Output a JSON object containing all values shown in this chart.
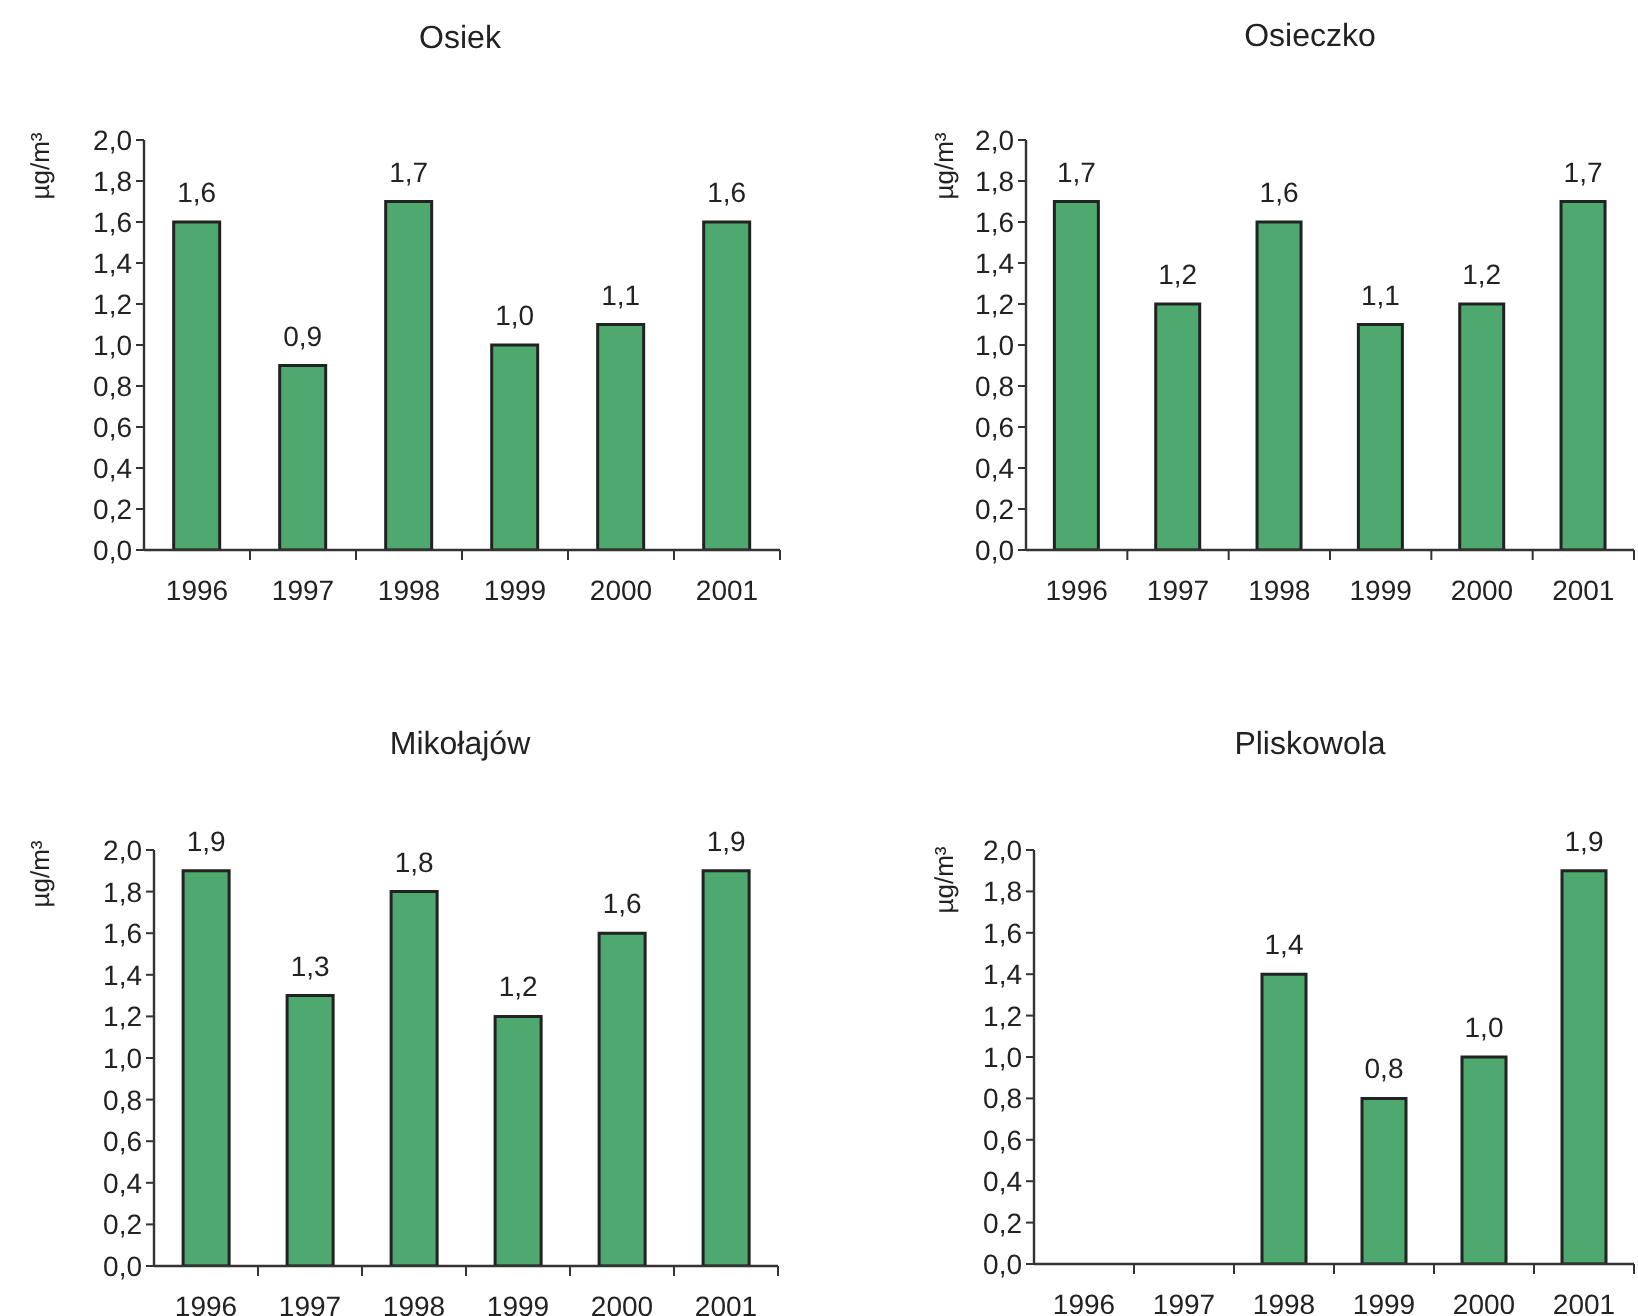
{
  "chart_data": [
    {
      "type": "bar",
      "title": "Osiek",
      "ylabel": "µg/m³",
      "categories": [
        "1996",
        "1997",
        "1998",
        "1999",
        "2000",
        "2001"
      ],
      "values": [
        1.6,
        0.9,
        1.7,
        1.0,
        1.1,
        1.6
      ],
      "value_labels": [
        "1,6",
        "0,9",
        "1,7",
        "1,0",
        "1,1",
        "1,6"
      ],
      "color": "#4da96e",
      "ylim": [
        0,
        2
      ],
      "yticks": [
        {
          "value": 0,
          "label": "0,0"
        },
        {
          "value": 0.2,
          "label": "0,2"
        },
        {
          "value": 0.4,
          "label": "0,4"
        },
        {
          "value": 0.6,
          "label": "0,6"
        },
        {
          "value": 0.8,
          "label": "0,8"
        },
        {
          "value": 1,
          "label": "1,0"
        },
        {
          "value": 1.2,
          "label": "1,2"
        },
        {
          "value": 1.4,
          "label": "1,4"
        },
        {
          "value": 1.6,
          "label": "1,6"
        },
        {
          "value": 1.8,
          "label": "1,8"
        },
        {
          "value": 2,
          "label": "2,0"
        }
      ]
    },
    {
      "type": "bar",
      "title": "Osieczko",
      "ylabel": "µg/m³",
      "categories": [
        "1996",
        "1997",
        "1998",
        "1999",
        "2000",
        "2001"
      ],
      "values": [
        1.7,
        1.2,
        1.6,
        1.1,
        1.2,
        1.7
      ],
      "value_labels": [
        "1,7",
        "1,2",
        "1,6",
        "1,1",
        "1,2",
        "1,7"
      ],
      "color": "#4da96e",
      "ylim": [
        0,
        2
      ],
      "yticks": [
        {
          "value": 0,
          "label": "0,0"
        },
        {
          "value": 0.2,
          "label": "0,2"
        },
        {
          "value": 0.4,
          "label": "0,4"
        },
        {
          "value": 0.6,
          "label": "0,6"
        },
        {
          "value": 0.8,
          "label": "0,8"
        },
        {
          "value": 1,
          "label": "1,0"
        },
        {
          "value": 1.2,
          "label": "1,2"
        },
        {
          "value": 1.4,
          "label": "1,4"
        },
        {
          "value": 1.6,
          "label": "1,6"
        },
        {
          "value": 1.8,
          "label": "1,8"
        },
        {
          "value": 2,
          "label": "2,0"
        }
      ]
    },
    {
      "type": "bar",
      "title": "Mikołajów",
      "ylabel": "µg/m³",
      "categories": [
        "1996",
        "1997",
        "1998",
        "1999",
        "2000",
        "2001"
      ],
      "values": [
        1.9,
        1.3,
        1.8,
        1.2,
        1.6,
        1.9
      ],
      "value_labels": [
        "1,9",
        "1,3",
        "1,8",
        "1,2",
        "1,6",
        "1,9"
      ],
      "color": "#4da96e",
      "ylim": [
        0,
        2
      ],
      "yticks": [
        {
          "value": 0,
          "label": "0,0"
        },
        {
          "value": 0.2,
          "label": "0,2"
        },
        {
          "value": 0.4,
          "label": "0,4"
        },
        {
          "value": 0.6,
          "label": "0,6"
        },
        {
          "value": 0.8,
          "label": "0,8"
        },
        {
          "value": 1,
          "label": "1,0"
        },
        {
          "value": 1.2,
          "label": "1,2"
        },
        {
          "value": 1.4,
          "label": "1,4"
        },
        {
          "value": 1.6,
          "label": "1,6"
        },
        {
          "value": 1.8,
          "label": "1,8"
        },
        {
          "value": 2,
          "label": "2,0"
        }
      ]
    },
    {
      "type": "bar",
      "title": "Pliskowola",
      "ylabel": "µg/m³",
      "categories": [
        "1996",
        "1997",
        "1998",
        "1999",
        "2000",
        "2001"
      ],
      "values": [
        null,
        null,
        1.4,
        0.8,
        1.0,
        1.9
      ],
      "value_labels": [
        null,
        null,
        "1,4",
        "0,8",
        "1,0",
        "1,9"
      ],
      "color": "#4da96e",
      "ylim": [
        0,
        2
      ],
      "yticks": [
        {
          "value": 0,
          "label": "0,0"
        },
        {
          "value": 0.2,
          "label": "0,2"
        },
        {
          "value": 0.4,
          "label": "0,4"
        },
        {
          "value": 0.6,
          "label": "0,6"
        },
        {
          "value": 0.8,
          "label": "0,8"
        },
        {
          "value": 1,
          "label": "1,0"
        },
        {
          "value": 1.2,
          "label": "1,2"
        },
        {
          "value": 1.4,
          "label": "1,4"
        },
        {
          "value": 1.6,
          "label": "1,6"
        },
        {
          "value": 1.8,
          "label": "1,8"
        },
        {
          "value": 2,
          "label": "2,0"
        }
      ]
    }
  ]
}
